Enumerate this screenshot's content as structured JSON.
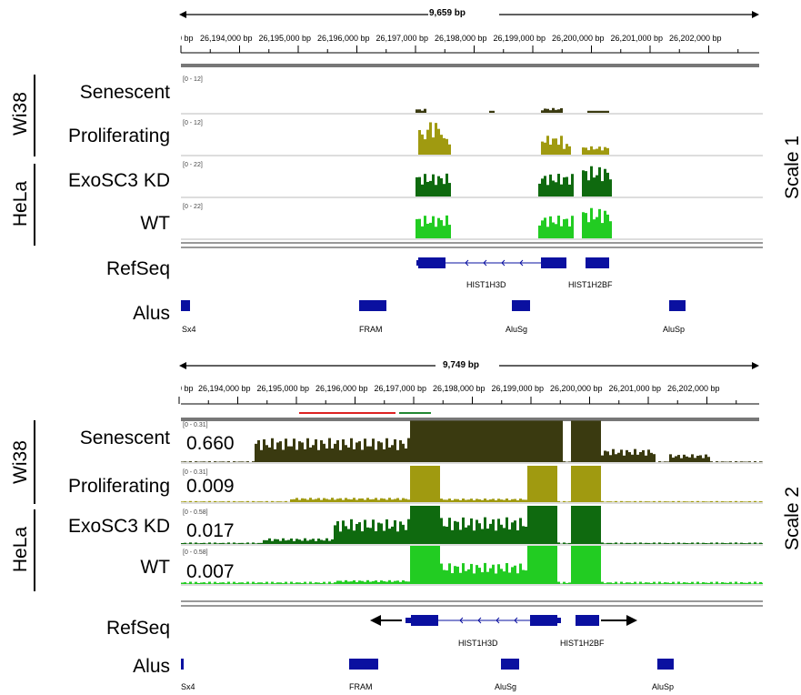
{
  "panels": [
    {
      "key": "scale1",
      "length_label": "9,659 bp",
      "ruler_ticks": [
        "26,194,000 bp",
        "26,195,000 bp",
        "26,196,000 bp",
        "26,197,000 bp",
        "26,198,000 bp",
        "26,199,000 bp",
        "26,200,000 bp",
        "26,201,000 bp",
        "26,202,000 bp"
      ],
      "side_label": "Scale 1",
      "groups": [
        {
          "name": "Wi38"
        },
        {
          "name": "HeLa"
        }
      ],
      "tracks": [
        {
          "label": "Senescent",
          "range": "[0 - 12]",
          "color": "#3a3a10",
          "value": ""
        },
        {
          "label": "Proliferating",
          "range": "[0 - 12]",
          "color": "#a09a10",
          "value": ""
        },
        {
          "label": "ExoSC3 KD",
          "range": "[0 - 22]",
          "color": "#0f6a0f",
          "value": ""
        },
        {
          "label": "WT",
          "range": "[0 - 22]",
          "color": "#22cc22",
          "value": ""
        }
      ],
      "refseq_label": "RefSeq",
      "genes": [
        "HIST1H3D",
        "HIST1H2BF"
      ],
      "alus_label": "Alus",
      "alus": [
        "Sx4",
        "FRAM",
        "AluSg",
        "AluSp"
      ]
    },
    {
      "key": "scale2",
      "length_label": "9,749 bp",
      "ruler_ticks": [
        "26,194,000 bp",
        "26,195,000 bp",
        "26,196,000 bp",
        "26,197,000 bp",
        "26,198,000 bp",
        "26,199,000 bp",
        "26,200,000 bp",
        "26,201,000 bp",
        "26,202,000 bp"
      ],
      "side_label": "Scale 2",
      "groups": [
        {
          "name": "Wi38"
        },
        {
          "name": "HeLa"
        }
      ],
      "tracks": [
        {
          "label": "Senescent",
          "range": "[0 - 0.31]",
          "color": "#3a3a10",
          "value": "0.660"
        },
        {
          "label": "Proliferating",
          "range": "[0 - 0.31]",
          "color": "#a09a10",
          "value": "0.009"
        },
        {
          "label": "ExoSC3 KD",
          "range": "[0 - 0.58]",
          "color": "#0f6a0f",
          "value": "0.017"
        },
        {
          "label": "WT",
          "range": "[0 - 0.58]",
          "color": "#22cc22",
          "value": "0.007"
        }
      ],
      "refseq_label": "RefSeq",
      "genes": [
        "HIST1H3D",
        "HIST1H2BF"
      ],
      "alus_label": "Alus",
      "alus": [
        "Sx4",
        "FRAM",
        "AluSg",
        "AluSp"
      ]
    }
  ],
  "colors": {
    "gene": "#0a10a0",
    "alu": "#0a10a0",
    "red_bar": "#dd2222",
    "green_bar": "#228833"
  }
}
